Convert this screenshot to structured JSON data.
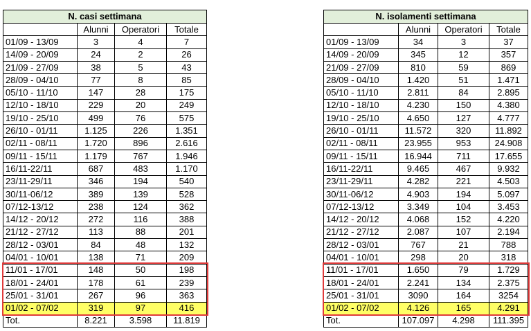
{
  "tables": [
    {
      "title": "N. casi settimana",
      "columns": [
        "Alunni",
        "Operatori",
        "Totale"
      ],
      "rows": [
        [
          "01/09 - 13/09",
          "3",
          "4",
          "7"
        ],
        [
          "14/09 - 20/09",
          "24",
          "2",
          "26"
        ],
        [
          "21/09 - 27/09",
          "38",
          "5",
          "43"
        ],
        [
          "28/09 - 04/10",
          "77",
          "8",
          "85"
        ],
        [
          "05/10 - 11/10",
          "147",
          "28",
          "175"
        ],
        [
          "12/10 - 18/10",
          "229",
          "20",
          "249"
        ],
        [
          "19/10 - 25/10",
          "499",
          "76",
          "575"
        ],
        [
          "26/10 - 01/11",
          "1.125",
          "226",
          "1.351"
        ],
        [
          "02/11 - 08/11",
          "1.720",
          "896",
          "2.616"
        ],
        [
          "09/11 - 15/11",
          "1.179",
          "767",
          "1.946"
        ],
        [
          "16/11-22/11",
          "687",
          "483",
          "1.170"
        ],
        [
          "23/11-29/11",
          "346",
          "194",
          "540"
        ],
        [
          "30/11-06/12",
          "389",
          "139",
          "528"
        ],
        [
          "07/12-13/12",
          "238",
          "124",
          "362"
        ],
        [
          "14/12 - 20/12",
          "272",
          "116",
          "388"
        ],
        [
          "21/12 - 27/12",
          "113",
          "88",
          "201"
        ],
        [
          "28/12 - 03/01",
          "84",
          "48",
          "132"
        ],
        [
          "04/01 - 10/01",
          "138",
          "71",
          "209"
        ],
        [
          "11/01 - 17/01",
          "148",
          "50",
          "198"
        ],
        [
          "18/01 - 24/01",
          "178",
          "61",
          "239"
        ],
        [
          "25/01 - 31/01",
          "267",
          "96",
          "363"
        ],
        [
          "01/02 - 07/02",
          "319",
          "97",
          "416"
        ]
      ],
      "total": [
        "Tot.",
        "8.221",
        "3.598",
        "11.819"
      ]
    },
    {
      "title": "N. isolamenti settimana",
      "columns": [
        "Alunni",
        "Operatori",
        "Totale"
      ],
      "rows": [
        [
          "01/09 - 13/09",
          "34",
          "3",
          "37"
        ],
        [
          "14/09 - 20/09",
          "345",
          "12",
          "357"
        ],
        [
          "21/09 - 27/09",
          "810",
          "59",
          "869"
        ],
        [
          "28/09 - 04/10",
          "1.420",
          "51",
          "1.471"
        ],
        [
          "05/10 - 11/10",
          "2.811",
          "84",
          "2.895"
        ],
        [
          "12/10 - 18/10",
          "4.230",
          "150",
          "4.380"
        ],
        [
          "19/10 - 25/10",
          "4.650",
          "127",
          "4.777"
        ],
        [
          "26/10 - 01/11",
          "11.572",
          "320",
          "11.892"
        ],
        [
          "02/11 - 08/11",
          "23.955",
          "953",
          "24.908"
        ],
        [
          "09/11 - 15/11",
          "16.944",
          "711",
          "17.655"
        ],
        [
          "16/11-22/11",
          "9.465",
          "467",
          "9.932"
        ],
        [
          "23/11-29/11",
          "4.282",
          "221",
          "4.503"
        ],
        [
          "30/11-06/12",
          "4.903",
          "194",
          "5.097"
        ],
        [
          "07/12-13/12",
          "3.349",
          "104",
          "3.453"
        ],
        [
          "14/12 - 20/12",
          "4.068",
          "152",
          "4.220"
        ],
        [
          "21/12 - 27/12",
          "2.087",
          "107",
          "2.194"
        ],
        [
          "28/12 - 03/01",
          "767",
          "21",
          "788"
        ],
        [
          "04/01 - 10/01",
          "298",
          "20",
          "318"
        ],
        [
          "11/01 - 17/01",
          "1.650",
          "79",
          "1.729"
        ],
        [
          "18/01 - 24/01",
          "2.241",
          "134",
          "2.375"
        ],
        [
          "25/01 - 31/01",
          "3090",
          "164",
          "3254"
        ],
        [
          "01/02 - 07/02",
          "4.126",
          "165",
          "4.291"
        ]
      ],
      "total": [
        "Tot.",
        "107.097",
        "4.298",
        "111.395"
      ]
    }
  ]
}
